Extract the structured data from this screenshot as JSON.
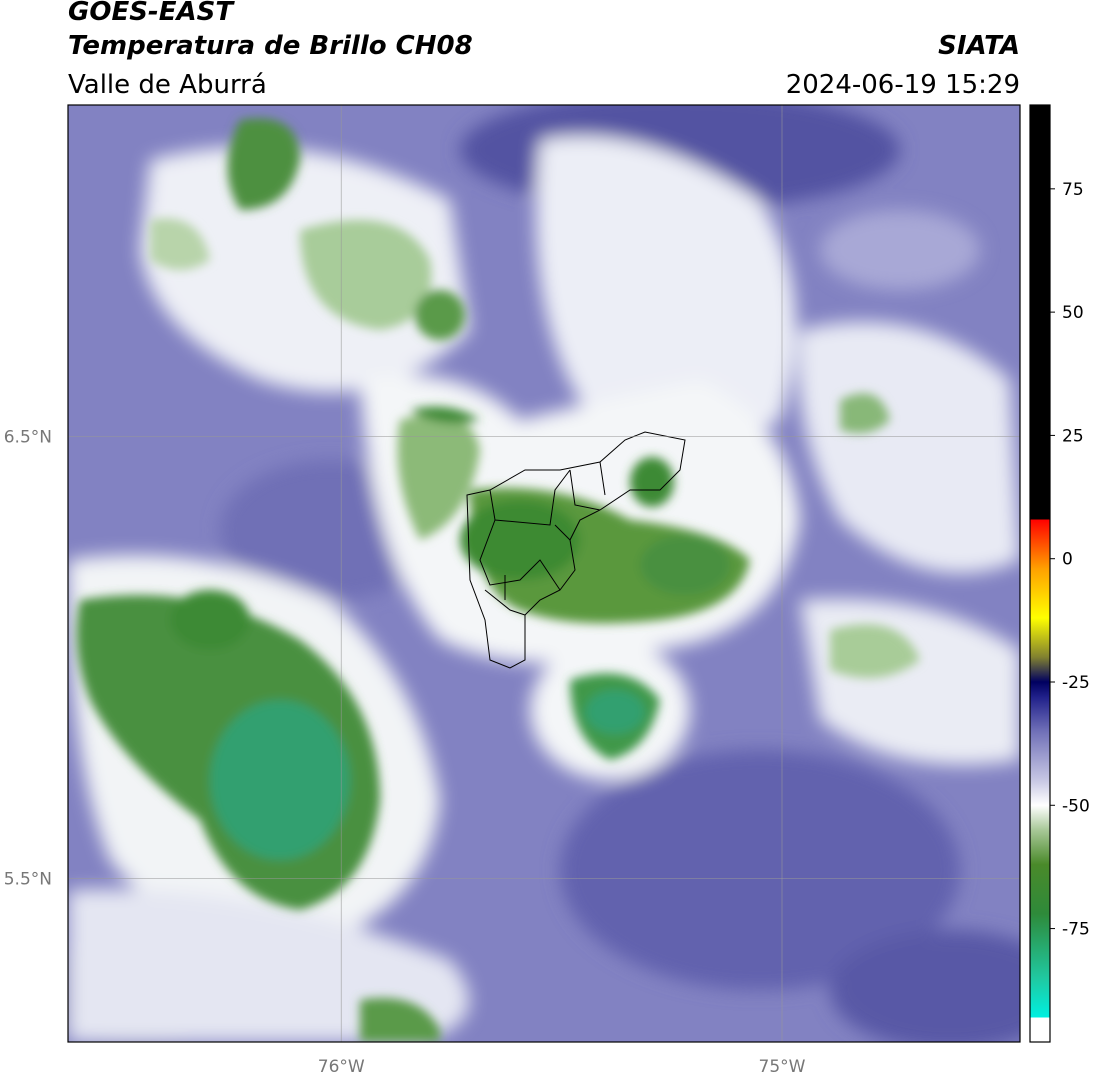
{
  "header": {
    "title": "GOES-EAST",
    "subtitle": "Temperatura de Brillo CH08",
    "region": "Valle de Aburrá",
    "source": "SIATA",
    "datetime": "2024-06-19 15:29"
  },
  "map": {
    "xlim": [
      -76.62,
      -74.46
    ],
    "ylim": [
      5.13,
      7.25
    ],
    "xticks": [
      {
        "value": -76,
        "label": "76°W"
      },
      {
        "value": -75,
        "label": "75°W"
      }
    ],
    "yticks": [
      {
        "value": 6.5,
        "label": "6.5°N"
      },
      {
        "value": 5.5,
        "label": "5.5°N"
      }
    ],
    "grid": true
  },
  "colorbar": {
    "lim": [
      -98,
      92
    ],
    "ticks": [
      75,
      50,
      25,
      0,
      -25,
      -50,
      -75
    ],
    "colors": [
      {
        "value": -98,
        "color": "#ffffff"
      },
      {
        "value": -93,
        "color": "#ffffff"
      },
      {
        "value": -93,
        "color": "#00f0e0"
      },
      {
        "value": -85,
        "color": "#20c8a0"
      },
      {
        "value": -72,
        "color": "#2e8a3a"
      },
      {
        "value": -62,
        "color": "#4a8a2a"
      },
      {
        "value": -55,
        "color": "#a8c898"
      },
      {
        "value": -50,
        "color": "#ffffff"
      },
      {
        "value": -45,
        "color": "#c8c8e4"
      },
      {
        "value": -35,
        "color": "#7070b8"
      },
      {
        "value": -28,
        "color": "#20208a"
      },
      {
        "value": -25,
        "color": "#000060"
      },
      {
        "value": -20,
        "color": "#808030"
      },
      {
        "value": -12,
        "color": "#ffff00"
      },
      {
        "value": -2,
        "color": "#ffa000"
      },
      {
        "value": 8,
        "color": "#ff0000"
      },
      {
        "value": 8,
        "color": "#000000"
      },
      {
        "value": 92,
        "color": "#000000"
      }
    ]
  }
}
